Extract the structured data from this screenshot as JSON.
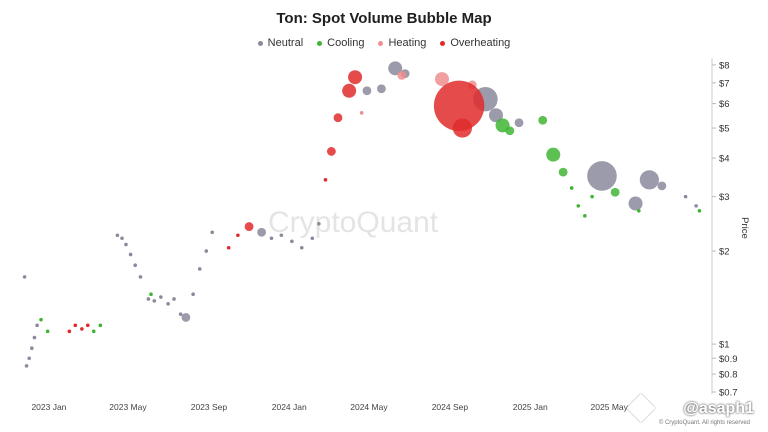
{
  "chart_data": {
    "type": "scatter",
    "title": "Ton: Spot Volume Bubble Map",
    "xlabel": "",
    "ylabel": "Price",
    "yscale": "log",
    "ylim": [
      0.7,
      8.3
    ],
    "xlim": [
      "2022-11-15",
      "2025-09-25"
    ],
    "y_ticks": [
      {
        "value": 8,
        "label": "$8"
      },
      {
        "value": 7,
        "label": "$7"
      },
      {
        "value": 6,
        "label": "$6"
      },
      {
        "value": 5,
        "label": "$5"
      },
      {
        "value": 4,
        "label": "$4"
      },
      {
        "value": 3,
        "label": "$3"
      },
      {
        "value": 2,
        "label": "$2"
      },
      {
        "value": 1,
        "label": "$1"
      },
      {
        "value": 0.9,
        "label": "$0.9"
      },
      {
        "value": 0.8,
        "label": "$0.8"
      },
      {
        "value": 0.7,
        "label": "$0.7"
      }
    ],
    "x_ticks": [
      {
        "date": "2023-01-01",
        "label": "2023 Jan"
      },
      {
        "date": "2023-05-01",
        "label": "2023 May"
      },
      {
        "date": "2023-09-01",
        "label": "2023 Sep"
      },
      {
        "date": "2024-01-01",
        "label": "2024 Jan"
      },
      {
        "date": "2024-05-01",
        "label": "2024 May"
      },
      {
        "date": "2024-09-01",
        "label": "2024 Sep"
      },
      {
        "date": "2025-01-01",
        "label": "2025 Jan"
      },
      {
        "date": "2025-05-01",
        "label": "2025 May"
      }
    ],
    "legend": [
      {
        "name": "Neutral",
        "color": "#8a8a9c"
      },
      {
        "name": "Cooling",
        "color": "#3fb534"
      },
      {
        "name": "Heating",
        "color": "#ef8e8e"
      },
      {
        "name": "Overheating",
        "color": "#e02b2b"
      }
    ],
    "series": [
      {
        "name": "Neutral",
        "color": "#8a8a9c",
        "points": [
          {
            "date": "2022-11-25",
            "price": 1.65,
            "size": 1
          },
          {
            "date": "2022-11-28",
            "price": 0.85,
            "size": 1
          },
          {
            "date": "2022-12-02",
            "price": 0.9,
            "size": 1
          },
          {
            "date": "2022-12-06",
            "price": 0.97,
            "size": 1
          },
          {
            "date": "2022-12-10",
            "price": 1.05,
            "size": 1
          },
          {
            "date": "2022-12-14",
            "price": 1.15,
            "size": 1
          },
          {
            "date": "2023-04-15",
            "price": 2.25,
            "size": 1
          },
          {
            "date": "2023-04-22",
            "price": 2.2,
            "size": 1
          },
          {
            "date": "2023-04-28",
            "price": 2.1,
            "size": 1
          },
          {
            "date": "2023-05-05",
            "price": 1.95,
            "size": 1
          },
          {
            "date": "2023-05-12",
            "price": 1.8,
            "size": 1
          },
          {
            "date": "2023-05-20",
            "price": 1.65,
            "size": 1
          },
          {
            "date": "2023-06-01",
            "price": 1.4,
            "size": 1
          },
          {
            "date": "2023-06-10",
            "price": 1.38,
            "size": 1
          },
          {
            "date": "2023-06-20",
            "price": 1.42,
            "size": 1
          },
          {
            "date": "2023-07-01",
            "price": 1.35,
            "size": 1
          },
          {
            "date": "2023-07-10",
            "price": 1.4,
            "size": 1
          },
          {
            "date": "2023-07-20",
            "price": 1.25,
            "size": 1
          },
          {
            "date": "2023-07-28",
            "price": 1.22,
            "size": 2
          },
          {
            "date": "2023-08-08",
            "price": 1.45,
            "size": 1
          },
          {
            "date": "2023-08-18",
            "price": 1.75,
            "size": 1
          },
          {
            "date": "2023-08-28",
            "price": 2.0,
            "size": 1
          },
          {
            "date": "2023-09-06",
            "price": 2.3,
            "size": 1
          },
          {
            "date": "2023-11-20",
            "price": 2.3,
            "size": 2
          },
          {
            "date": "2023-12-05",
            "price": 2.2,
            "size": 1
          },
          {
            "date": "2023-12-20",
            "price": 2.25,
            "size": 1
          },
          {
            "date": "2024-01-05",
            "price": 2.15,
            "size": 1
          },
          {
            "date": "2024-01-20",
            "price": 2.05,
            "size": 1
          },
          {
            "date": "2024-02-05",
            "price": 2.2,
            "size": 1
          },
          {
            "date": "2024-02-15",
            "price": 2.45,
            "size": 1
          },
          {
            "date": "2024-04-28",
            "price": 6.6,
            "size": 2
          },
          {
            "date": "2024-05-20",
            "price": 6.7,
            "size": 2
          },
          {
            "date": "2024-06-10",
            "price": 7.8,
            "size": 3
          },
          {
            "date": "2024-06-25",
            "price": 7.5,
            "size": 2
          },
          {
            "date": "2024-10-25",
            "price": 6.2,
            "size": 5
          },
          {
            "date": "2024-11-10",
            "price": 5.5,
            "size": 3
          },
          {
            "date": "2024-12-15",
            "price": 5.2,
            "size": 2
          },
          {
            "date": "2025-04-20",
            "price": 3.5,
            "size": 6
          },
          {
            "date": "2025-06-10",
            "price": 2.85,
            "size": 3
          },
          {
            "date": "2025-07-01",
            "price": 3.4,
            "size": 4
          },
          {
            "date": "2025-07-20",
            "price": 3.25,
            "size": 2
          },
          {
            "date": "2025-08-25",
            "price": 3.0,
            "size": 1
          },
          {
            "date": "2025-09-10",
            "price": 2.8,
            "size": 1
          }
        ]
      },
      {
        "name": "Cooling",
        "color": "#3fb534",
        "points": [
          {
            "date": "2022-12-20",
            "price": 1.2,
            "size": 1
          },
          {
            "date": "2022-12-30",
            "price": 1.1,
            "size": 1
          },
          {
            "date": "2023-03-10",
            "price": 1.1,
            "size": 1
          },
          {
            "date": "2023-03-20",
            "price": 1.15,
            "size": 1
          },
          {
            "date": "2023-06-05",
            "price": 1.45,
            "size": 1
          },
          {
            "date": "2024-11-20",
            "price": 5.1,
            "size": 3
          },
          {
            "date": "2024-12-01",
            "price": 4.9,
            "size": 2
          },
          {
            "date": "2025-01-20",
            "price": 5.3,
            "size": 2
          },
          {
            "date": "2025-02-05",
            "price": 4.1,
            "size": 3
          },
          {
            "date": "2025-02-20",
            "price": 3.6,
            "size": 2
          },
          {
            "date": "2025-03-05",
            "price": 3.2,
            "size": 1
          },
          {
            "date": "2025-03-15",
            "price": 2.8,
            "size": 1
          },
          {
            "date": "2025-03-25",
            "price": 2.6,
            "size": 1
          },
          {
            "date": "2025-04-05",
            "price": 3.0,
            "size": 1
          },
          {
            "date": "2025-05-10",
            "price": 3.1,
            "size": 2
          },
          {
            "date": "2025-06-15",
            "price": 2.7,
            "size": 1
          },
          {
            "date": "2025-09-15",
            "price": 2.7,
            "size": 1
          }
        ]
      },
      {
        "name": "Heating",
        "color": "#ef8e8e",
        "points": [
          {
            "date": "2024-06-20",
            "price": 7.4,
            "size": 2
          },
          {
            "date": "2024-08-20",
            "price": 7.2,
            "size": 3
          },
          {
            "date": "2024-10-05",
            "price": 6.9,
            "size": 2
          },
          {
            "date": "2024-04-20",
            "price": 5.6,
            "size": 1
          }
        ]
      },
      {
        "name": "Overheating",
        "color": "#e02b2b",
        "points": [
          {
            "date": "2023-02-01",
            "price": 1.1,
            "size": 1
          },
          {
            "date": "2023-02-10",
            "price": 1.15,
            "size": 1
          },
          {
            "date": "2023-02-20",
            "price": 1.12,
            "size": 1
          },
          {
            "date": "2023-03-01",
            "price": 1.15,
            "size": 1
          },
          {
            "date": "2023-10-01",
            "price": 2.05,
            "size": 1
          },
          {
            "date": "2023-10-15",
            "price": 2.25,
            "size": 1
          },
          {
            "date": "2023-11-01",
            "price": 2.4,
            "size": 2
          },
          {
            "date": "2024-02-25",
            "price": 3.4,
            "size": 1
          },
          {
            "date": "2024-03-05",
            "price": 4.2,
            "size": 2
          },
          {
            "date": "2024-03-15",
            "price": 5.4,
            "size": 2
          },
          {
            "date": "2024-04-01",
            "price": 6.6,
            "size": 3
          },
          {
            "date": "2024-04-10",
            "price": 7.3,
            "size": 3
          },
          {
            "date": "2024-09-15",
            "price": 5.9,
            "size": 10
          },
          {
            "date": "2024-09-20",
            "price": 5.0,
            "size": 4
          }
        ]
      }
    ]
  },
  "watermark": "CryptoQuant",
  "signature": "@asaph1",
  "copyright": "© CryptoQuant. All rights reserved"
}
